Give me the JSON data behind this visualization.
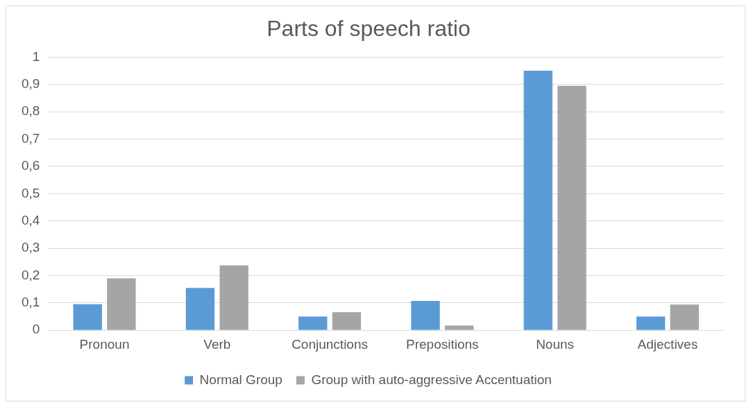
{
  "chart_data": {
    "type": "bar",
    "title": "Parts of speech ratio",
    "categories": [
      "Pronoun",
      "Verb",
      "Conjunctions",
      "Prepositions",
      "Nouns",
      "Adjectives"
    ],
    "series": [
      {
        "name": "Normal Group",
        "color": "#5b9bd5",
        "values": [
          0.095,
          0.155,
          0.05,
          0.107,
          0.95,
          0.05
        ]
      },
      {
        "name": "Group with auto-aggressive Accentuation",
        "color": "#a5a5a5",
        "values": [
          0.19,
          0.237,
          0.066,
          0.017,
          0.895,
          0.094
        ]
      }
    ],
    "ylim": [
      0,
      1
    ],
    "yticks": [
      {
        "value": 0,
        "label": "0"
      },
      {
        "value": 0.1,
        "label": "0,1"
      },
      {
        "value": 0.2,
        "label": "0,2"
      },
      {
        "value": 0.3,
        "label": "0,3"
      },
      {
        "value": 0.4,
        "label": "0,4"
      },
      {
        "value": 0.5,
        "label": "0,5"
      },
      {
        "value": 0.6,
        "label": "0,6"
      },
      {
        "value": 0.7,
        "label": "0,7"
      },
      {
        "value": 0.8,
        "label": "0,8"
      },
      {
        "value": 0.9,
        "label": "0,9"
      },
      {
        "value": 1,
        "label": "1"
      }
    ],
    "grid": "y",
    "legend": "bottom"
  }
}
